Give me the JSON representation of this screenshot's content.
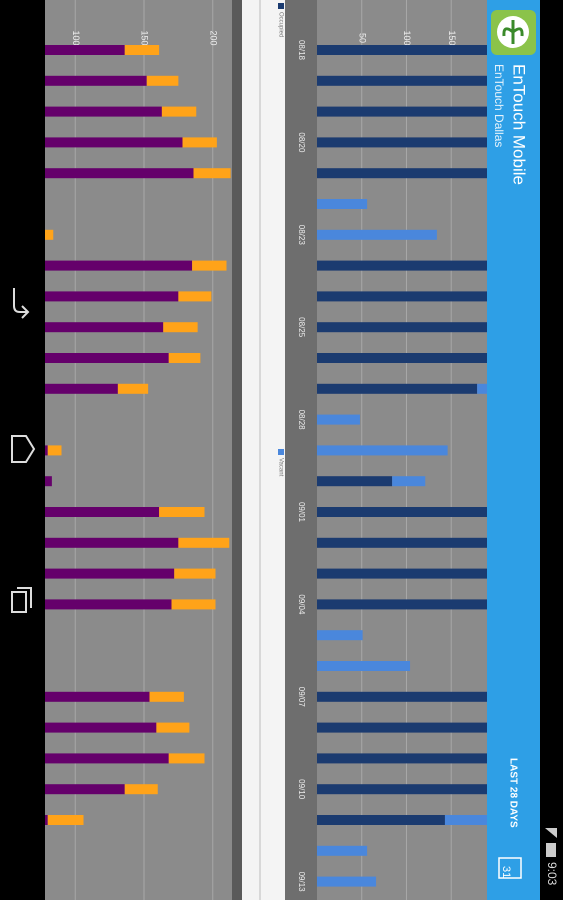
{
  "status_bar": {
    "time": "9:03"
  },
  "app_bar": {
    "title": "EnTouch Mobile",
    "subtitle": "EnTouch Dallas",
    "range": "LAST 28 DAYS",
    "calendar_day": "31"
  },
  "chart_data": [
    {
      "type": "bar",
      "orientation": "horizontal",
      "stacked": true,
      "categories": [
        "08/18",
        null,
        null,
        "08/20",
        null,
        null,
        "08/23",
        null,
        null,
        "08/25",
        null,
        null,
        "08/28",
        null,
        null,
        "09/01",
        null,
        null,
        "09/04",
        null,
        null,
        "09/07",
        null,
        null,
        "09/10",
        null,
        null,
        "09/13"
      ],
      "series": [
        {
          "name": "Occupied",
          "color": "#1b3b70",
          "values": [
            190,
            190,
            190,
            190,
            190,
            null,
            null,
            190,
            190,
            190,
            190,
            179,
            null,
            null,
            84,
            190,
            190,
            190,
            190,
            null,
            null,
            190,
            190,
            190,
            190,
            143,
            null,
            null
          ]
        },
        {
          "name": "Vacant",
          "color": "#4a87dc",
          "values": [
            null,
            null,
            null,
            null,
            null,
            56,
            134,
            null,
            null,
            null,
            null,
            11,
            48,
            146,
            37,
            null,
            null,
            null,
            null,
            51,
            104,
            null,
            null,
            null,
            null,
            47,
            56,
            66
          ]
        }
      ],
      "ylim": [
        0,
        190
      ],
      "yticks": [
        50,
        100,
        150
      ],
      "grid": true
    },
    {
      "type": "bar",
      "orientation": "horizontal",
      "stacked": true,
      "series": [
        {
          "color": "#65006b",
          "values": [
            136,
            152,
            163,
            178,
            186,
            null,
            74,
            185,
            175,
            164,
            168,
            131,
            null,
            80,
            83,
            161,
            175,
            172,
            170,
            null,
            null,
            154,
            159,
            168,
            136,
            80,
            null,
            null
          ]
        },
        {
          "color": "#ffa319",
          "values": [
            25,
            23,
            25,
            25,
            27,
            null,
            10,
            25,
            24,
            25,
            23,
            22,
            null,
            10,
            null,
            33,
            37,
            30,
            32,
            null,
            null,
            25,
            24,
            26,
            24,
            26,
            null,
            null
          ]
        }
      ],
      "ylim": [
        78,
        214
      ],
      "yticks": [
        100,
        150,
        200
      ],
      "grid": true
    }
  ]
}
